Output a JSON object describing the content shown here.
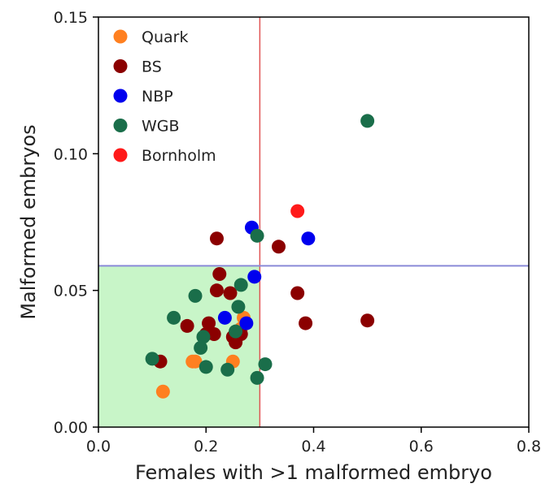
{
  "chart_data": {
    "type": "scatter",
    "title": "",
    "xlabel": "Females with >1 malformed embryo",
    "ylabel": "Malformed embryos",
    "xlim": [
      0.0,
      0.8
    ],
    "ylim": [
      0.0,
      0.15
    ],
    "x_ticks": [
      {
        "value": 0.0,
        "label": "0.0"
      },
      {
        "value": 0.2,
        "label": "0.2"
      },
      {
        "value": 0.4,
        "label": "0.4"
      },
      {
        "value": 0.6,
        "label": "0.6"
      },
      {
        "value": 0.8,
        "label": "0.8"
      }
    ],
    "y_ticks": [
      {
        "value": 0.0,
        "label": "0.00"
      },
      {
        "value": 0.05,
        "label": "0.05"
      },
      {
        "value": 0.1,
        "label": "0.10"
      },
      {
        "value": 0.15,
        "label": "0.15"
      }
    ],
    "grid": false,
    "legend_position": "top-left",
    "reference_lines": {
      "vertical_x": 0.3,
      "vertical_color": "#e05555",
      "horizontal_y": 0.059,
      "horizontal_color": "#8a8ad8"
    },
    "shaded_region": {
      "x": [
        0.0,
        0.3
      ],
      "y": [
        0.0,
        0.059
      ],
      "color": "#c8f5c8"
    },
    "series": [
      {
        "name": "Quark",
        "color": "#ff8020",
        "points": [
          {
            "x": 0.12,
            "y": 0.013
          },
          {
            "x": 0.175,
            "y": 0.024
          },
          {
            "x": 0.18,
            "y": 0.024
          },
          {
            "x": 0.25,
            "y": 0.024
          },
          {
            "x": 0.265,
            "y": 0.036
          },
          {
            "x": 0.27,
            "y": 0.04
          }
        ]
      },
      {
        "name": "BS",
        "color": "#8b0000",
        "points": [
          {
            "x": 0.115,
            "y": 0.024
          },
          {
            "x": 0.165,
            "y": 0.037
          },
          {
            "x": 0.2,
            "y": 0.034
          },
          {
            "x": 0.205,
            "y": 0.038
          },
          {
            "x": 0.215,
            "y": 0.034
          },
          {
            "x": 0.22,
            "y": 0.069
          },
          {
            "x": 0.22,
            "y": 0.05
          },
          {
            "x": 0.225,
            "y": 0.056
          },
          {
            "x": 0.245,
            "y": 0.049
          },
          {
            "x": 0.25,
            "y": 0.033
          },
          {
            "x": 0.255,
            "y": 0.031
          },
          {
            "x": 0.265,
            "y": 0.034
          },
          {
            "x": 0.335,
            "y": 0.066
          },
          {
            "x": 0.37,
            "y": 0.049
          },
          {
            "x": 0.385,
            "y": 0.038
          },
          {
            "x": 0.5,
            "y": 0.039
          }
        ]
      },
      {
        "name": "NBP",
        "color": "#0000ee",
        "points": [
          {
            "x": 0.235,
            "y": 0.04
          },
          {
            "x": 0.275,
            "y": 0.038
          },
          {
            "x": 0.285,
            "y": 0.073
          },
          {
            "x": 0.29,
            "y": 0.055
          },
          {
            "x": 0.39,
            "y": 0.069
          }
        ]
      },
      {
        "name": "WGB",
        "color": "#1a6e4a",
        "points": [
          {
            "x": 0.1,
            "y": 0.025
          },
          {
            "x": 0.14,
            "y": 0.04
          },
          {
            "x": 0.18,
            "y": 0.048
          },
          {
            "x": 0.19,
            "y": 0.029
          },
          {
            "x": 0.195,
            "y": 0.033
          },
          {
            "x": 0.2,
            "y": 0.022
          },
          {
            "x": 0.24,
            "y": 0.021
          },
          {
            "x": 0.255,
            "y": 0.035
          },
          {
            "x": 0.26,
            "y": 0.044
          },
          {
            "x": 0.265,
            "y": 0.052
          },
          {
            "x": 0.295,
            "y": 0.018
          },
          {
            "x": 0.295,
            "y": 0.07
          },
          {
            "x": 0.31,
            "y": 0.023
          },
          {
            "x": 0.5,
            "y": 0.112
          }
        ]
      },
      {
        "name": "Bornholm",
        "color": "#ff1a1a",
        "points": [
          {
            "x": 0.37,
            "y": 0.079
          }
        ]
      }
    ]
  }
}
